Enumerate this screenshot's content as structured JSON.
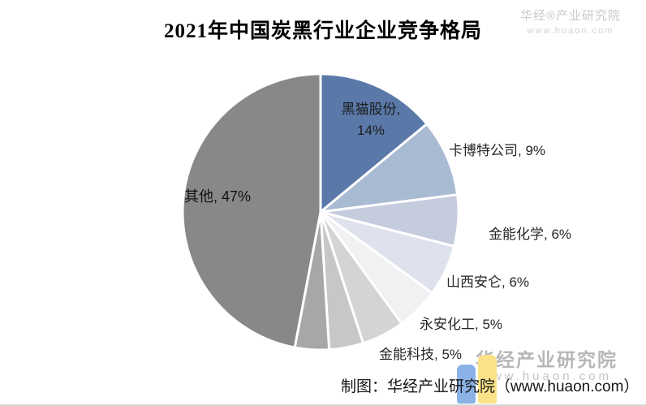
{
  "chart_data": {
    "type": "pie",
    "title": "2021年中国炭黑行业企业竞争格局",
    "unit": "%",
    "start_angle_deg": 0,
    "direction": "clockwise",
    "legend": "none",
    "slices": [
      {
        "name": "黑猫股份",
        "value": 14,
        "color": "#5a79a9",
        "label": "黑猫股份,\n14%",
        "label_position": "inside"
      },
      {
        "name": "卡博特公司",
        "value": 9,
        "color": "#a9bad3",
        "label": "卡博特公司, 9%",
        "label_position": "outside"
      },
      {
        "name": "金能化学",
        "value": 6,
        "color": "#c4ccde",
        "label": "金能化学, 6%",
        "label_position": "outside"
      },
      {
        "name": "山西安仑",
        "value": 6,
        "color": "#dde2ec",
        "label": "山西安仑, 6%",
        "label_position": "outside"
      },
      {
        "name": "永安化工",
        "value": 5,
        "color": "#f1f1f4",
        "label": "永安化工, 5%",
        "label_position": "outside"
      },
      {
        "name": "金能科技",
        "value": 5,
        "color": "#d4d4d7",
        "label": "金能科技, 5%",
        "label_position": "outside"
      },
      {
        "name": "",
        "value": 4,
        "color": "#c7c7ca",
        "label": "",
        "label_position": "none"
      },
      {
        "name": "",
        "value": 4,
        "color": "#a7a7aa",
        "label": "",
        "label_position": "none"
      },
      {
        "name": "其他",
        "value": 47,
        "color": "#888888",
        "label": "其他, 47%",
        "label_position": "inside"
      }
    ]
  },
  "watermarks": {
    "top_right_name": "华经®产业研究院",
    "top_right_url": "www.huaon.com",
    "bottom_right_name": "华经产业研究院",
    "bottom_right_url": "www.huaon.com"
  },
  "footer": {
    "credit": "制图：华经产业研究院（www.huaon.com）"
  },
  "logo": {
    "bar_colors": [
      "#8ab2e6",
      "#fae289"
    ]
  }
}
